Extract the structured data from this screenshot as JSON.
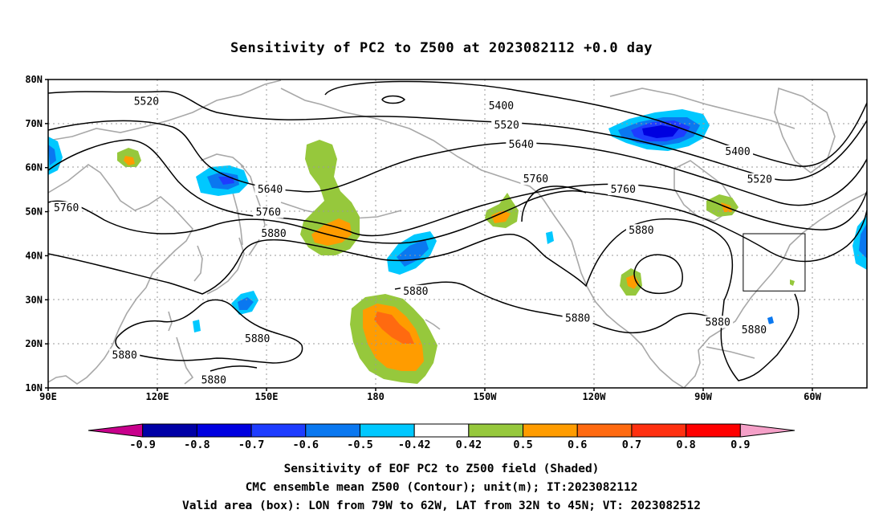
{
  "title": "Sensitivity of PC2 to Z500 at 2023082112 +0.0 day",
  "map": {
    "lat_labels": [
      {
        "value": 80,
        "label": "80N"
      },
      {
        "value": 70,
        "label": "70N"
      },
      {
        "value": 60,
        "label": "60N"
      },
      {
        "value": 50,
        "label": "50N"
      },
      {
        "value": 40,
        "label": "40N"
      },
      {
        "value": 30,
        "label": "30N"
      },
      {
        "value": 20,
        "label": "20N"
      },
      {
        "value": 10,
        "label": "10N"
      }
    ],
    "lon_labels": [
      {
        "value": 90,
        "label": "90E"
      },
      {
        "value": 120,
        "label": "120E"
      },
      {
        "value": 150,
        "label": "150E"
      },
      {
        "value": 180,
        "label": "180"
      },
      {
        "value": 210,
        "label": "150W"
      },
      {
        "value": 240,
        "label": "120W"
      },
      {
        "value": 270,
        "label": "90W"
      },
      {
        "value": 300,
        "label": "60W"
      }
    ],
    "lon_range": [
      90,
      315
    ],
    "lat_range": [
      10,
      80
    ],
    "valid_box": {
      "lon": [
        281,
        298
      ],
      "lat": [
        32,
        45
      ]
    },
    "contour_labels": [
      {
        "text": "5520",
        "lon": 117,
        "lat": 75
      },
      {
        "text": "5400",
        "lon": 214.5,
        "lat": 74
      },
      {
        "text": "5520",
        "lon": 216,
        "lat": 69.6
      },
      {
        "text": "5640",
        "lon": 220,
        "lat": 65.2
      },
      {
        "text": "5400",
        "lon": 279.5,
        "lat": 63.6
      },
      {
        "text": "5520",
        "lon": 285.5,
        "lat": 57.3
      },
      {
        "text": "5760",
        "lon": 95,
        "lat": 50.8
      },
      {
        "text": "5640",
        "lon": 151,
        "lat": 55
      },
      {
        "text": "5760",
        "lon": 150.5,
        "lat": 49.8
      },
      {
        "text": "5880",
        "lon": 152,
        "lat": 45
      },
      {
        "text": "5760",
        "lon": 224,
        "lat": 57.4
      },
      {
        "text": "5760",
        "lon": 248,
        "lat": 55
      },
      {
        "text": "5880",
        "lon": 253,
        "lat": 45.7
      },
      {
        "text": "5880",
        "lon": 191,
        "lat": 31.9
      },
      {
        "text": "5880",
        "lon": 235.5,
        "lat": 25.8
      },
      {
        "text": "5880",
        "lon": 147.5,
        "lat": 21.1
      },
      {
        "text": "5880",
        "lon": 111,
        "lat": 17.4
      },
      {
        "text": "5880",
        "lon": 135.5,
        "lat": 11.7
      },
      {
        "text": "5880",
        "lon": 274,
        "lat": 24.9
      },
      {
        "text": "5880",
        "lon": 284,
        "lat": 23.1
      }
    ]
  },
  "colorbar": {
    "labels": [
      "-0.9",
      "-0.8",
      "-0.7",
      "-0.6",
      "-0.5",
      "-0.42",
      "0.42",
      "0.5",
      "0.6",
      "0.7",
      "0.8",
      "0.9"
    ],
    "colors": [
      "#c8008c",
      "#0000a6",
      "#0000e0",
      "#1e3cff",
      "#0a78f0",
      "#00c8ff",
      "#ffffff",
      "#96c83c",
      "#ff9c00",
      "#ff6a10",
      "#ff3010",
      "#ff0000",
      "#f5a0c8"
    ]
  },
  "caption": {
    "line1": "Sensitivity of EOF PC2 to Z500 field (Shaded)",
    "line2": "CMC ensemble mean Z500 (Contour); unit(m); IT:2023082112",
    "line3": "Valid area (box): LON from 79W to 62W, LAT from 32N to 45N; VT: 2023082512"
  }
}
